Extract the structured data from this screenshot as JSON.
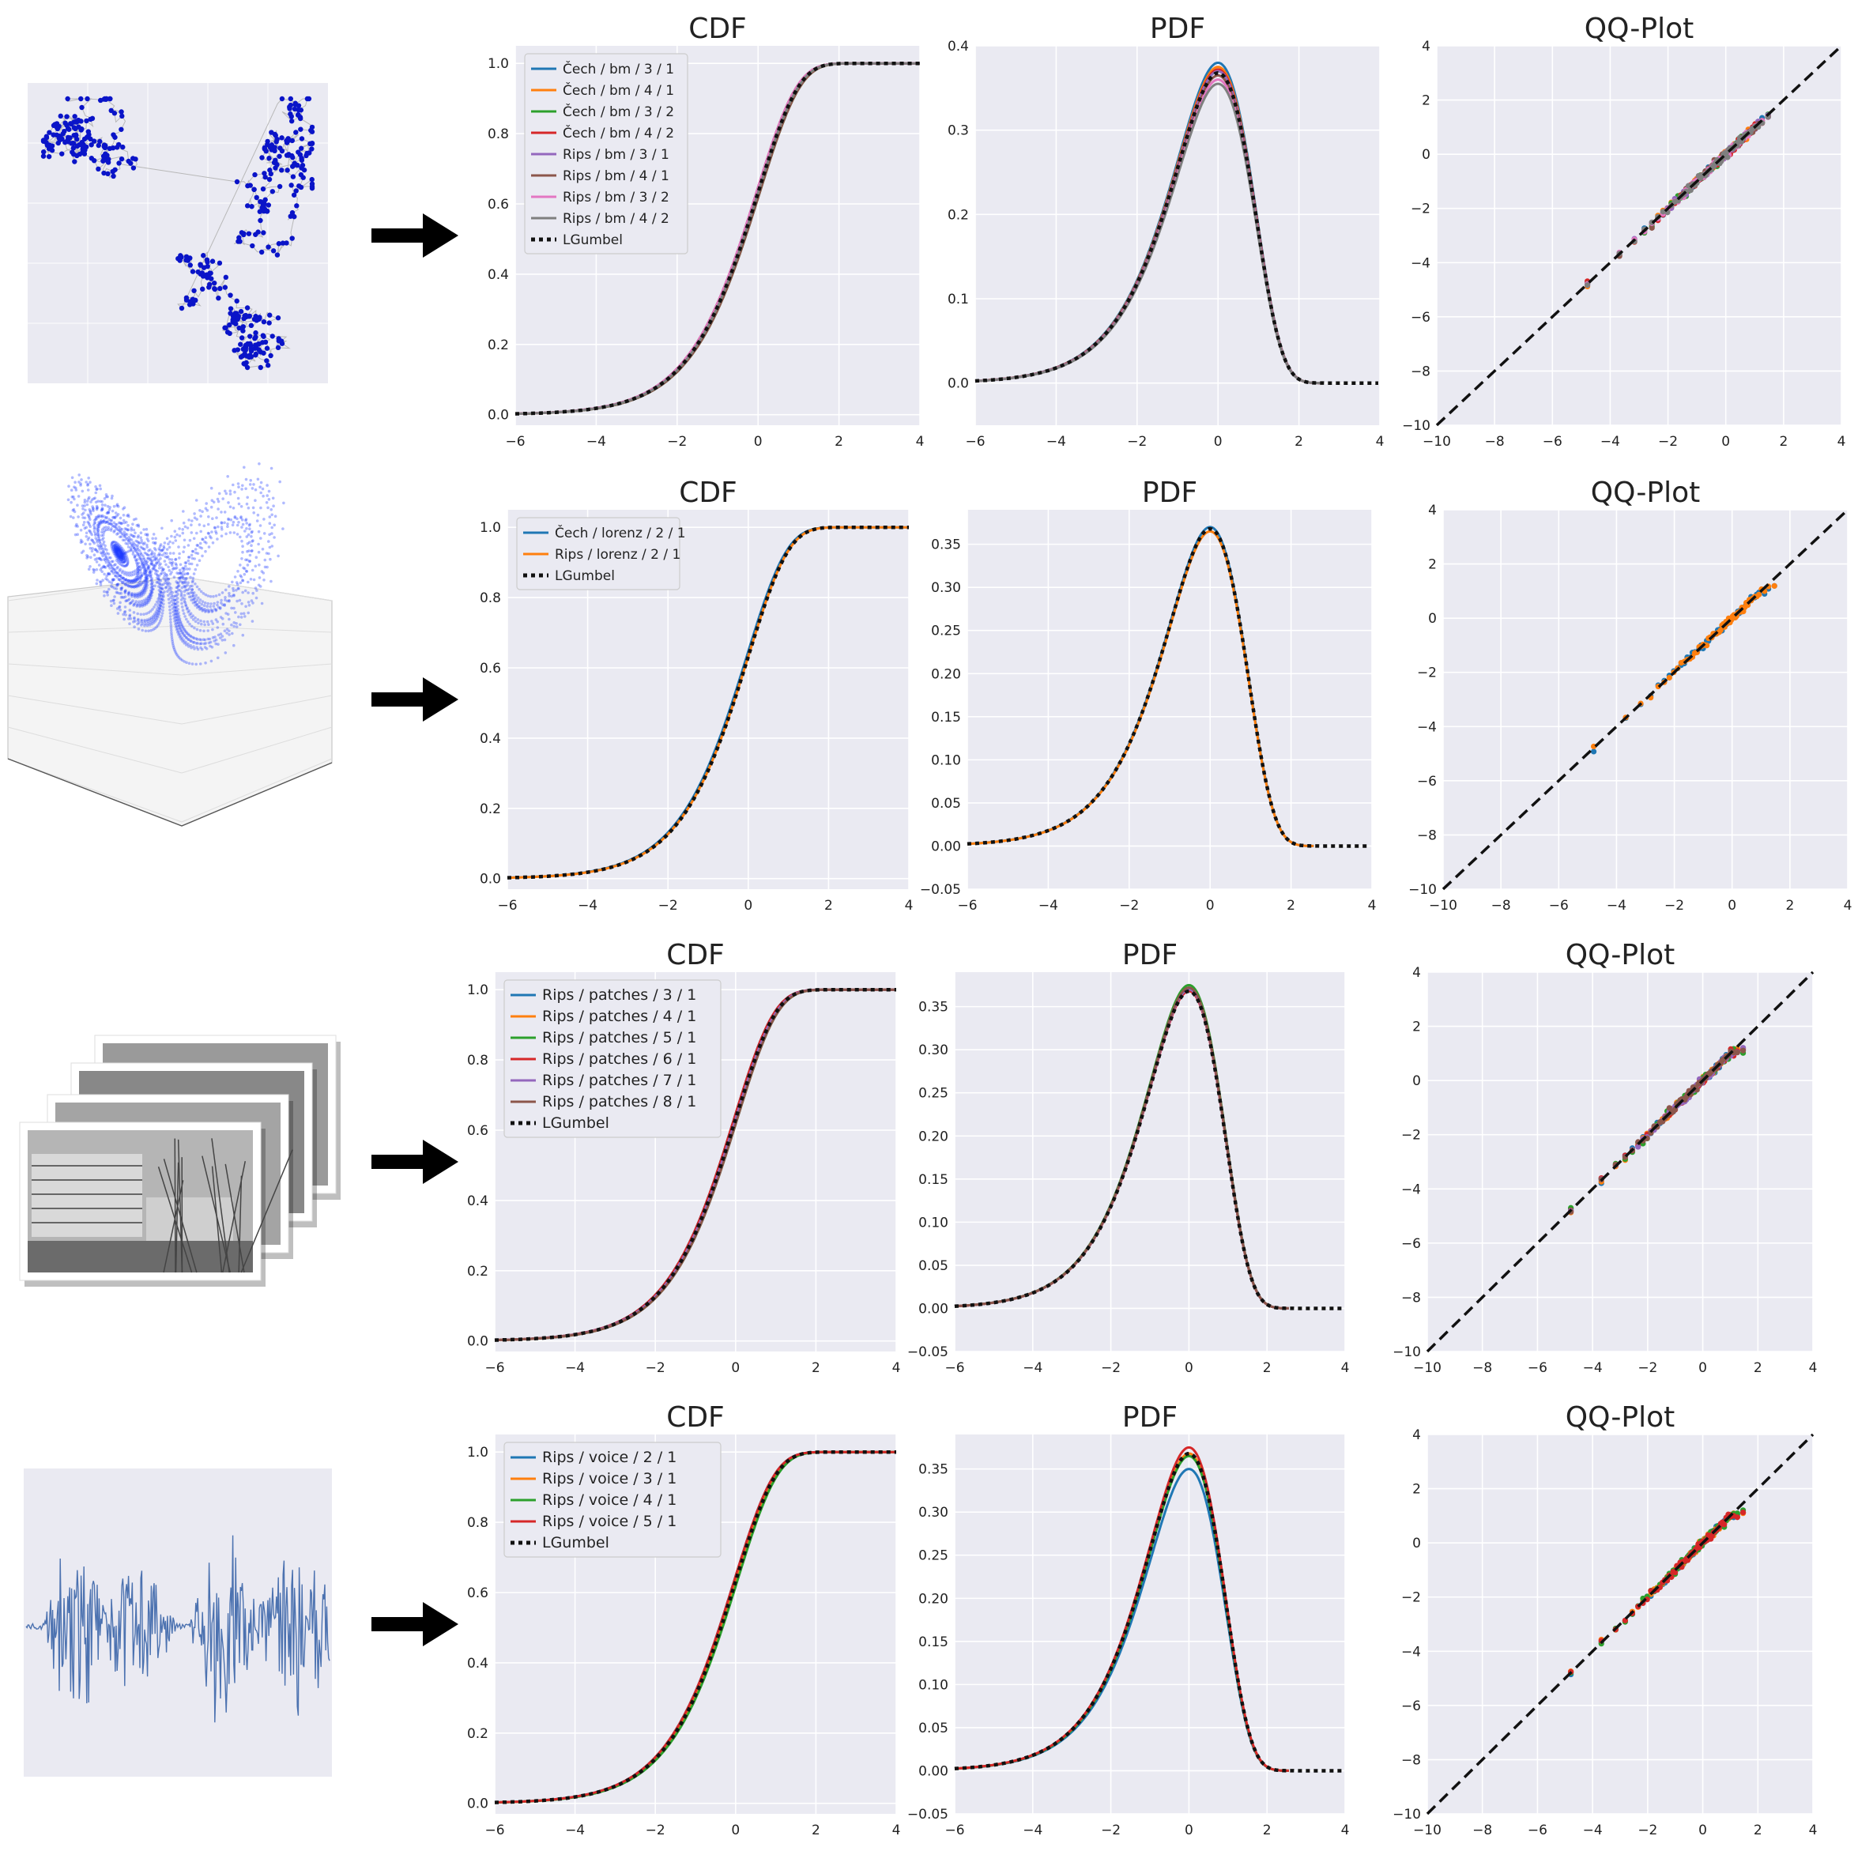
{
  "gumbel_label": "LGumbel",
  "colors": {
    "palette": [
      "#1f77b4",
      "#ff7f0e",
      "#2ca02c",
      "#d62728",
      "#9467bd",
      "#8c564b",
      "#e377c2",
      "#7f7f7f"
    ],
    "panel_bg": "#eaeaf2",
    "grid": "#ffffff",
    "reference": "#111111",
    "arrow": "#000000",
    "point_cloud": "#0a14c8"
  },
  "rows": [
    {
      "thumbnail": "brownian-motion-point-cloud",
      "series": [
        "Čech / bm / 3 / 1",
        "Čech / bm / 4 / 1",
        "Čech / bm / 3 / 2",
        "Čech / bm / 4 / 2",
        "Rips / bm / 3 / 1",
        "Rips / bm / 4 / 1",
        "Rips / bm / 3 / 2",
        "Rips / bm / 4 / 2"
      ],
      "cdf": {
        "title": "CDF",
        "xlim": [
          -6,
          4
        ],
        "ylim": [
          -0.03,
          1.05
        ],
        "xticks": [
          -6,
          -4,
          -2,
          0,
          2,
          4
        ],
        "yticks": [
          0.0,
          0.2,
          0.4,
          0.6,
          0.8,
          1.0
        ],
        "legend": "top-left"
      },
      "pdf": {
        "title": "PDF",
        "xlim": [
          -6,
          4
        ],
        "ylim": [
          -0.05,
          0.4
        ],
        "xticks": [
          -6,
          -4,
          -2,
          0,
          2,
          4
        ],
        "yticks": [
          0.0,
          0.1,
          0.2,
          0.3,
          0.4
        ],
        "peaks": [
          0.38,
          0.375,
          0.37,
          0.372,
          0.37,
          0.365,
          0.36,
          0.355
        ]
      },
      "qq": {
        "title": "QQ-Plot",
        "xlim": [
          -10,
          4
        ],
        "ylim": [
          -10,
          4
        ],
        "xticks": [
          -10,
          -8,
          -6,
          -4,
          -2,
          0,
          2,
          4
        ],
        "yticks": [
          -10,
          -8,
          -6,
          -4,
          -2,
          0,
          2,
          4
        ],
        "tail_end": [
          2.3,
          2.2,
          2.1,
          2.0,
          2.2,
          2.1,
          2.0,
          1.9
        ]
      }
    },
    {
      "thumbnail": "lorenz-attractor-3d",
      "series": [
        "Čech / lorenz / 2 / 1",
        "Rips / lorenz / 2 / 1"
      ],
      "cdf": {
        "title": "CDF",
        "xlim": [
          -6,
          4
        ],
        "ylim": [
          -0.03,
          1.05
        ],
        "xticks": [
          -6,
          -4,
          -2,
          0,
          2,
          4
        ],
        "yticks": [
          0.0,
          0.2,
          0.4,
          0.6,
          0.8,
          1.0
        ],
        "legend": "top-left"
      },
      "pdf": {
        "title": "PDF",
        "xlim": [
          -6,
          4
        ],
        "ylim": [
          -0.05,
          0.39
        ],
        "xticks": [
          -6,
          -4,
          -2,
          0,
          2,
          4
        ],
        "yticks": [
          -0.05,
          0.0,
          0.05,
          0.1,
          0.15,
          0.2,
          0.25,
          0.3,
          0.35
        ],
        "peaks": [
          0.37,
          0.365
        ]
      },
      "qq": {
        "title": "QQ-Plot",
        "xlim": [
          -10,
          4
        ],
        "ylim": [
          -10,
          4
        ],
        "xticks": [
          -10,
          -8,
          -6,
          -4,
          -2,
          0,
          2,
          4
        ],
        "yticks": [
          -10,
          -8,
          -6,
          -4,
          -2,
          0,
          2,
          4
        ],
        "tail_end": [
          1.5,
          1.5
        ]
      }
    },
    {
      "thumbnail": "image-patches-stack",
      "series": [
        "Rips / patches / 3 / 1",
        "Rips / patches / 4 / 1",
        "Rips / patches / 5 / 1",
        "Rips / patches / 6 / 1",
        "Rips / patches / 7 / 1",
        "Rips / patches / 8 / 1"
      ],
      "cdf": {
        "title": "CDF",
        "xlim": [
          -6,
          4
        ],
        "ylim": [
          -0.03,
          1.05
        ],
        "xticks": [
          -6,
          -4,
          -2,
          0,
          2,
          4
        ],
        "yticks": [
          0.0,
          0.2,
          0.4,
          0.6,
          0.8,
          1.0
        ],
        "legend": "top-left"
      },
      "pdf": {
        "title": "PDF",
        "xlim": [
          -6,
          4
        ],
        "ylim": [
          -0.05,
          0.39
        ],
        "xticks": [
          -6,
          -4,
          -2,
          0,
          2,
          4
        ],
        "yticks": [
          -0.05,
          0.0,
          0.05,
          0.1,
          0.15,
          0.2,
          0.25,
          0.3,
          0.35
        ],
        "peaks": [
          0.372,
          0.37,
          0.375,
          0.368,
          0.37,
          0.372
        ]
      },
      "qq": {
        "title": "QQ-Plot",
        "xlim": [
          -10,
          4
        ],
        "ylim": [
          -10,
          4
        ],
        "xticks": [
          -10,
          -8,
          -6,
          -4,
          -2,
          0,
          2,
          4
        ],
        "yticks": [
          -10,
          -8,
          -6,
          -4,
          -2,
          0,
          2,
          4
        ],
        "tail_end": [
          1.4,
          1.4,
          1.4,
          1.4,
          1.4,
          1.4
        ]
      }
    },
    {
      "thumbnail": "voice-waveform",
      "series": [
        "Rips / voice / 2 / 1",
        "Rips / voice / 3 / 1",
        "Rips / voice / 4 / 1",
        "Rips / voice / 5 / 1"
      ],
      "cdf": {
        "title": "CDF",
        "xlim": [
          -6,
          4
        ],
        "ylim": [
          -0.03,
          1.05
        ],
        "xticks": [
          -6,
          -4,
          -2,
          0,
          2,
          4
        ],
        "yticks": [
          0.0,
          0.2,
          0.4,
          0.6,
          0.8,
          1.0
        ],
        "legend": "top-left"
      },
      "pdf": {
        "title": "PDF",
        "xlim": [
          -6,
          4
        ],
        "ylim": [
          -0.05,
          0.39
        ],
        "xticks": [
          -6,
          -4,
          -2,
          0,
          2,
          4
        ],
        "yticks": [
          -0.05,
          0.0,
          0.05,
          0.1,
          0.15,
          0.2,
          0.25,
          0.3,
          0.35
        ],
        "peaks": [
          0.35,
          0.368,
          0.365,
          0.375
        ]
      },
      "qq": {
        "title": "QQ-Plot",
        "xlim": [
          -10,
          4
        ],
        "ylim": [
          -10,
          4
        ],
        "xticks": [
          -10,
          -8,
          -6,
          -4,
          -2,
          0,
          2,
          4
        ],
        "yticks": [
          -10,
          -8,
          -6,
          -4,
          -2,
          0,
          2,
          4
        ],
        "tail_end": [
          1.5,
          1.4,
          1.4,
          1.3
        ]
      }
    }
  ],
  "chart_data": [
    {
      "type": "line",
      "title": "CDF",
      "xlim": [
        -6,
        4
      ],
      "ylim": [
        0,
        1
      ],
      "legend": "top-left",
      "x": [
        -6,
        -4,
        -3,
        -2,
        -1,
        0,
        0.5,
        1,
        1.5,
        2,
        4
      ],
      "series": [
        {
          "name": "LGumbel",
          "values": [
            0.0,
            0.02,
            0.05,
            0.12,
            0.28,
            0.5,
            0.66,
            0.85,
            0.99,
            1.0,
            1.0
          ]
        }
      ]
    },
    {
      "type": "line",
      "title": "PDF",
      "xlim": [
        -6,
        4
      ],
      "ylim": [
        -0.05,
        0.4
      ],
      "x": [
        -6,
        -4,
        -3,
        -2,
        -1,
        0,
        0.5,
        1,
        1.5,
        2,
        4
      ],
      "series": [
        {
          "name": "LGumbel",
          "values": [
            0.003,
            0.02,
            0.05,
            0.13,
            0.25,
            0.37,
            0.32,
            0.2,
            0.06,
            0.005,
            0.0
          ]
        }
      ]
    },
    {
      "type": "scatter",
      "title": "QQ-Plot",
      "xlim": [
        -10,
        4
      ],
      "ylim": [
        -10,
        4
      ],
      "x": [
        -10,
        -8,
        -6,
        -4,
        -2,
        0,
        2
      ],
      "series": [
        {
          "name": "",
          "values": [
            -9.5,
            -8.2,
            -6.1,
            -4.0,
            -2.0,
            0.0,
            1.6
          ]
        }
      ]
    }
  ]
}
